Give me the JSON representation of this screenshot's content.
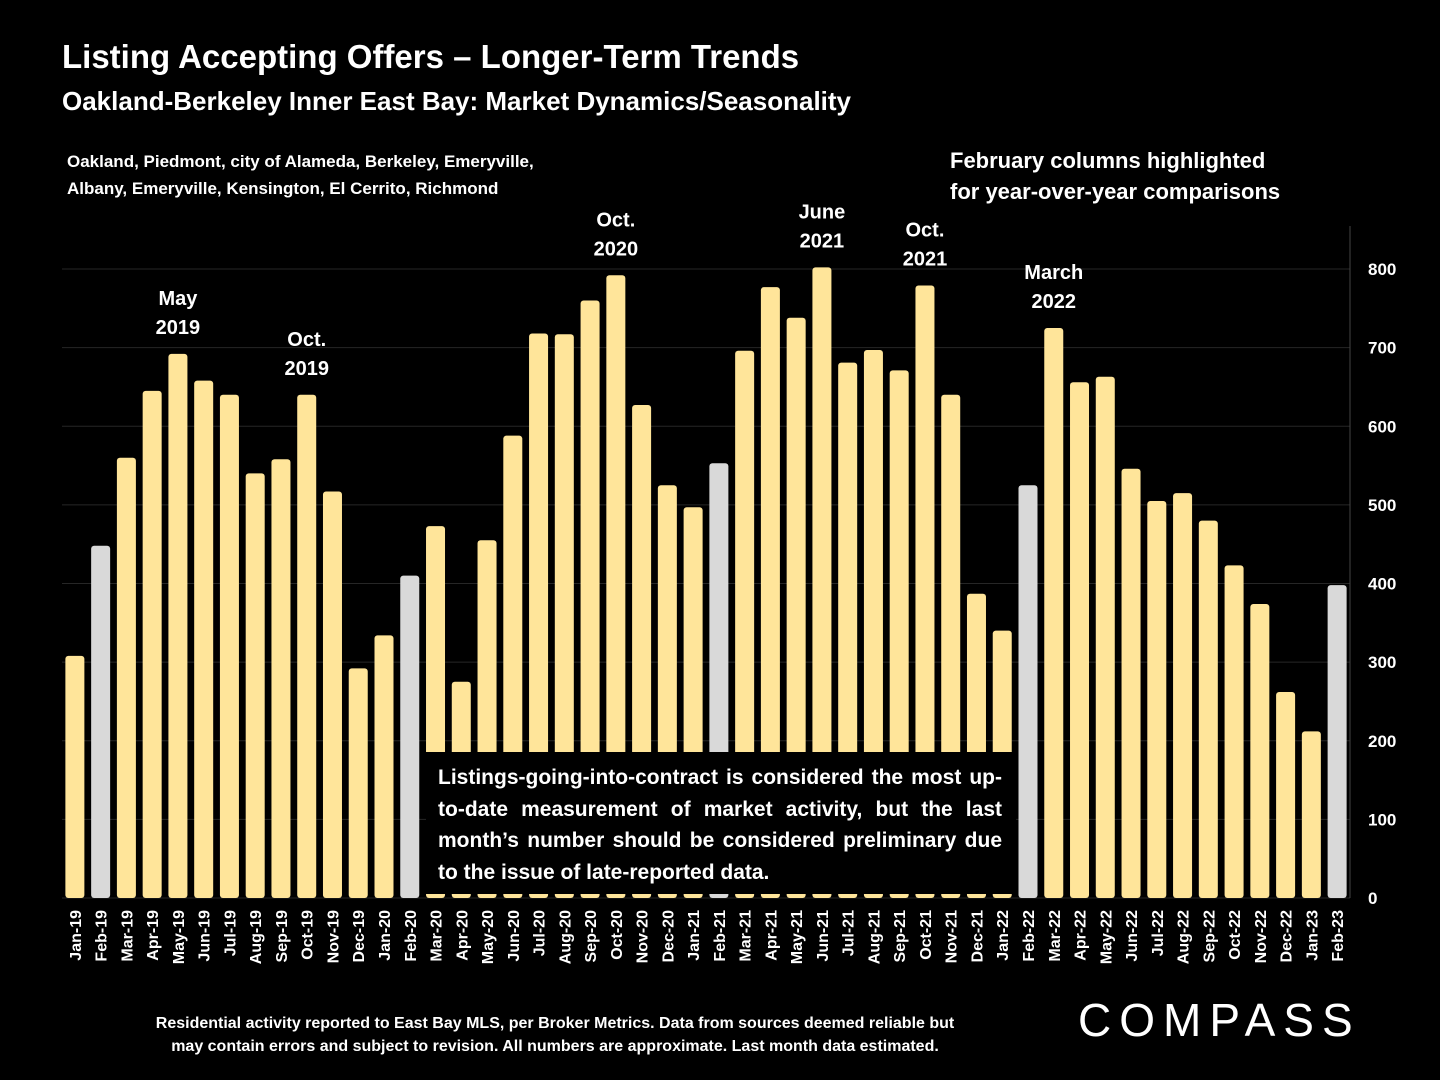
{
  "header": {
    "title": "Listing Accepting Offers – Longer-Term Trends",
    "subtitle": "Oakland-Berkeley Inner East Bay: Market Dynamics/Seasonality"
  },
  "areas": {
    "line1": "Oakland, Piedmont, city of Alameda, Berkeley, Emeryville,",
    "line2": "Albany, Emeryville, Kensington, El Cerrito, Richmond"
  },
  "highlight_note": {
    "line1": "February columns highlighted",
    "line2": "for year-over-year comparisons"
  },
  "note_box": {
    "text": "Listings-going-into-contract is considered the most up-to-date measurement of market activity, but the last month’s number should be considered preliminary due to the issue of late-reported data."
  },
  "footer": {
    "line1": "Residential activity reported to East Bay MLS, per Broker Metrics. Data from sources deemed reliable but",
    "line2": "may contain errors and subject to revision. All numbers are approximate. Last month data estimated."
  },
  "logo": {
    "text": "COMPASS"
  },
  "colors": {
    "bar": "#FFE59A",
    "highlight_bar": "#D9D9D9",
    "background": "#000000",
    "text": "#FFFFFF"
  },
  "chart_data": {
    "type": "bar",
    "title": "Listing Accepting Offers – Longer-Term Trends",
    "categories": [
      "Jan-19",
      "Feb-19",
      "Mar-19",
      "Apr-19",
      "May-19",
      "Jun-19",
      "Jul-19",
      "Aug-19",
      "Sep-19",
      "Oct-19",
      "Nov-19",
      "Dec-19",
      "Jan-20",
      "Feb-20",
      "Mar-20",
      "Apr-20",
      "May-20",
      "Jun-20",
      "Jul-20",
      "Aug-20",
      "Sep-20",
      "Oct-20",
      "Nov-20",
      "Dec-20",
      "Jan-21",
      "Feb-21",
      "Mar-21",
      "Apr-21",
      "May-21",
      "Jun-21",
      "Jul-21",
      "Aug-21",
      "Sep-21",
      "Oct-21",
      "Nov-21",
      "Dec-21",
      "Jan-22",
      "Feb-22",
      "Mar-22",
      "Apr-22",
      "May-22",
      "Jun-22",
      "Jul-22",
      "Aug-22",
      "Sep-22",
      "Oct-22",
      "Nov-22",
      "Dec-22",
      "Jan-23",
      "Feb-23"
    ],
    "values": [
      308,
      448,
      560,
      645,
      692,
      658,
      640,
      540,
      558,
      640,
      517,
      292,
      334,
      410,
      473,
      275,
      455,
      588,
      718,
      717,
      760,
      792,
      627,
      525,
      497,
      553,
      696,
      777,
      738,
      802,
      681,
      697,
      671,
      779,
      640,
      387,
      340,
      525,
      725,
      656,
      663,
      546,
      505,
      515,
      480,
      423,
      374,
      262,
      212,
      398
    ],
    "highlighted": [
      "Feb-19",
      "Feb-20",
      "Feb-21",
      "Feb-22",
      "Feb-23"
    ],
    "ylim": [
      0,
      850
    ],
    "yticks": [
      0,
      100,
      200,
      300,
      400,
      500,
      600,
      700,
      800
    ],
    "axis_position": "right",
    "grid": true,
    "annotations": [
      {
        "category": "May-19",
        "lines": [
          "May",
          "2019"
        ]
      },
      {
        "category": "Oct-19",
        "lines": [
          "Oct.",
          "2019"
        ]
      },
      {
        "category": "Oct-20",
        "lines": [
          "Oct.",
          "2020"
        ]
      },
      {
        "category": "Jun-21",
        "lines": [
          "June",
          "2021"
        ]
      },
      {
        "category": "Oct-21",
        "lines": [
          "Oct.",
          "2021"
        ]
      },
      {
        "category": "Mar-22",
        "lines": [
          "March",
          "2022"
        ]
      }
    ]
  }
}
